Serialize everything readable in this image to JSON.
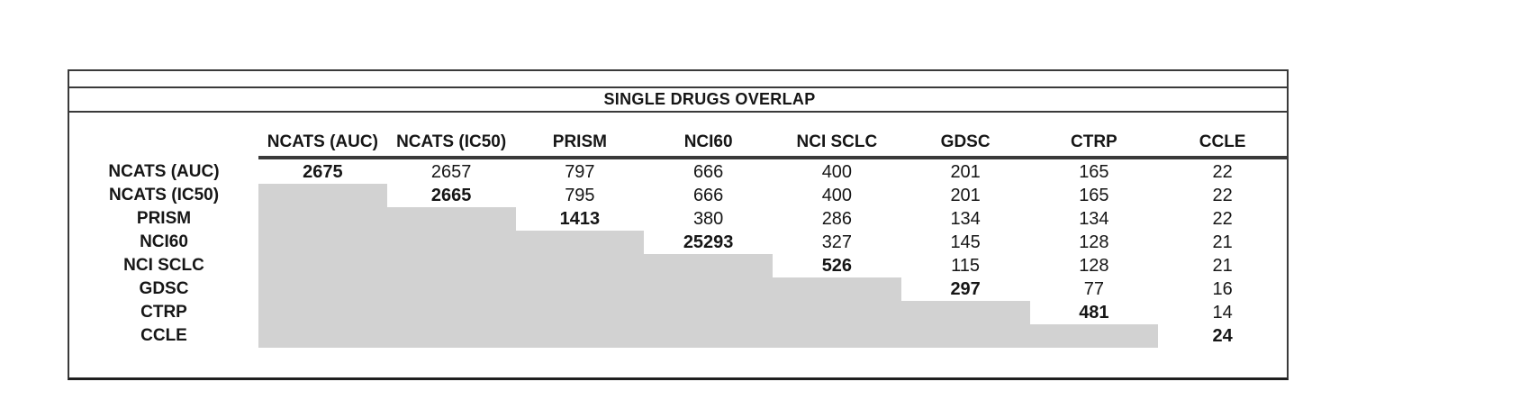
{
  "title": "SINGLE DRUGS OVERLAP",
  "chart_data": {
    "type": "table",
    "title": "SINGLE DRUGS OVERLAP",
    "columns": [
      "NCATS (AUC)",
      "NCATS (IC50)",
      "PRISM",
      "NCI60",
      "NCI SCLC",
      "GDSC",
      "CTRP",
      "CCLE"
    ],
    "rows": [
      "NCATS (AUC)",
      "NCATS (IC50)",
      "PRISM",
      "NCI60",
      "NCI SCLC",
      "GDSC",
      "CTRP",
      "CCLE"
    ],
    "matrix": [
      [
        2675,
        2657,
        797,
        666,
        400,
        201,
        165,
        22
      ],
      [
        null,
        2665,
        795,
        666,
        400,
        201,
        165,
        22
      ],
      [
        null,
        null,
        1413,
        380,
        286,
        134,
        134,
        22
      ],
      [
        null,
        null,
        null,
        25293,
        327,
        145,
        128,
        21
      ],
      [
        null,
        null,
        null,
        null,
        526,
        115,
        128,
        21
      ],
      [
        null,
        null,
        null,
        null,
        null,
        297,
        77,
        16
      ],
      [
        null,
        null,
        null,
        null,
        null,
        null,
        481,
        14
      ],
      [
        null,
        null,
        null,
        null,
        null,
        null,
        null,
        24
      ]
    ],
    "diagonal_bold": true,
    "lower_triangle_shaded": true,
    "legend_position": "none",
    "grid": "off"
  },
  "style": {
    "lower_triangle_fill": "#d2d2d2",
    "rule_color": "#3a3a3a",
    "text_color": "#161616",
    "background": "#ffffff"
  }
}
